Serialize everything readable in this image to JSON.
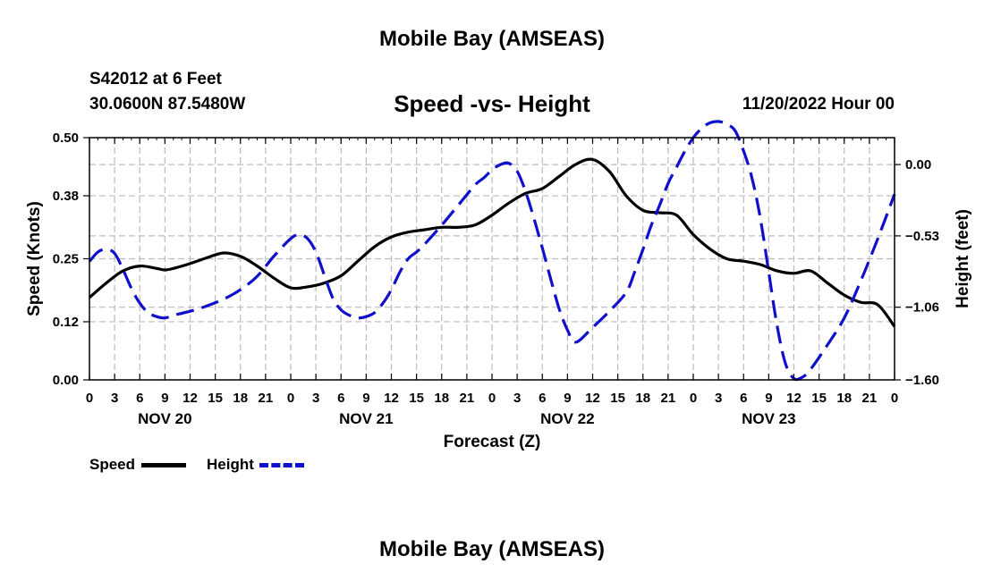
{
  "header": {
    "title": "Mobile Bay (AMSEAS)",
    "station": "S42012 at 6 Feet",
    "coords": "30.0600N  87.5480W",
    "subtitle": "Speed -vs- Height",
    "datetime": "11/20/2022 Hour 00"
  },
  "footer": {
    "title": "Mobile Bay (AMSEAS)"
  },
  "chart_data": {
    "type": "line",
    "title": "Speed -vs- Height",
    "xlabel": "Forecast (Z)",
    "ylabel": "Speed (Knots)",
    "y2label": "Height (feet)",
    "xlim": [
      0,
      96
    ],
    "ylim": [
      0,
      0.5
    ],
    "y2lim": [
      -1.6,
      0.2
    ],
    "x_ticks": [
      0,
      3,
      6,
      9,
      12,
      15,
      18,
      21,
      24,
      27,
      30,
      33,
      36,
      39,
      42,
      45,
      48,
      51,
      54,
      57,
      60,
      63,
      66,
      69,
      72,
      75,
      78,
      81,
      84,
      87,
      90,
      93,
      96
    ],
    "x_tick_labels": [
      "0",
      "3",
      "6",
      "9",
      "12",
      "15",
      "18",
      "21",
      "0",
      "3",
      "6",
      "9",
      "12",
      "15",
      "18",
      "21",
      "0",
      "3",
      "6",
      "9",
      "12",
      "15",
      "18",
      "21",
      "0",
      "3",
      "6",
      "9",
      "12",
      "15",
      "18",
      "21",
      "0"
    ],
    "day_labels": [
      {
        "x": 9,
        "label": "NOV 20"
      },
      {
        "x": 33,
        "label": "NOV 21"
      },
      {
        "x": 57,
        "label": "NOV 22"
      },
      {
        "x": 81,
        "label": "NOV 23"
      }
    ],
    "y_ticks": [
      0.0,
      0.12,
      0.25,
      0.38,
      0.5
    ],
    "y_tick_labels": [
      "0.00",
      "0.12",
      "0.25",
      "0.38",
      "0.50"
    ],
    "y2_ticks": [
      0.0,
      -0.53,
      -1.06,
      -1.6
    ],
    "y2_tick_labels": [
      "0.00",
      "−0.53",
      "−1.06",
      "−1.60"
    ],
    "grid": true,
    "series": [
      {
        "name": "Speed",
        "axis": "left",
        "color": "#000000",
        "dash": "solid",
        "x": [
          0,
          2,
          4,
          6,
          8,
          9,
          10,
          12,
          14,
          16,
          18,
          20,
          22,
          24,
          26,
          28,
          30,
          32,
          34,
          36,
          38,
          40,
          42,
          44,
          46,
          48,
          50,
          52,
          54,
          56,
          58,
          60,
          62,
          64,
          66,
          68,
          70,
          72,
          74,
          76,
          78,
          80,
          82,
          84,
          86,
          88,
          90,
          92,
          94,
          96
        ],
        "y": [
          0.17,
          0.2,
          0.225,
          0.235,
          0.23,
          0.227,
          0.23,
          0.24,
          0.252,
          0.262,
          0.255,
          0.235,
          0.21,
          0.19,
          0.192,
          0.2,
          0.215,
          0.245,
          0.275,
          0.295,
          0.305,
          0.31,
          0.315,
          0.315,
          0.32,
          0.34,
          0.365,
          0.385,
          0.395,
          0.42,
          0.445,
          0.455,
          0.43,
          0.38,
          0.35,
          0.345,
          0.34,
          0.3,
          0.27,
          0.25,
          0.245,
          0.238,
          0.225,
          0.22,
          0.225,
          0.2,
          0.175,
          0.16,
          0.155,
          0.11
        ]
      },
      {
        "name": "Height",
        "axis": "right",
        "color": "#1010cc",
        "dash": "dashed",
        "x": [
          0,
          1,
          2,
          3,
          4,
          5,
          6,
          7,
          8,
          9,
          10,
          12,
          14,
          16,
          18,
          20,
          22,
          24,
          25,
          26,
          27,
          28,
          29,
          30,
          31,
          32,
          33,
          34,
          35,
          36,
          37,
          38,
          39,
          40,
          42,
          44,
          46,
          47,
          48,
          49,
          50,
          51,
          52,
          53,
          54,
          55,
          56,
          57,
          58,
          60,
          62,
          64,
          65,
          66,
          67,
          68,
          69,
          70,
          71,
          72,
          73,
          74,
          75,
          76,
          77,
          78,
          79,
          80,
          81,
          82,
          83,
          84,
          85,
          86,
          88,
          90,
          92,
          94,
          96
        ],
        "y": [
          -0.72,
          -0.65,
          -0.63,
          -0.66,
          -0.78,
          -0.92,
          -1.03,
          -1.1,
          -1.13,
          -1.14,
          -1.12,
          -1.09,
          -1.05,
          -1.0,
          -0.93,
          -0.83,
          -0.68,
          -0.55,
          -0.52,
          -0.55,
          -0.65,
          -0.82,
          -0.99,
          -1.08,
          -1.12,
          -1.14,
          -1.13,
          -1.1,
          -1.03,
          -0.93,
          -0.8,
          -0.7,
          -0.65,
          -0.59,
          -0.45,
          -0.3,
          -0.15,
          -0.1,
          -0.04,
          0.0,
          0.01,
          -0.05,
          -0.2,
          -0.4,
          -0.62,
          -0.85,
          -1.07,
          -1.23,
          -1.32,
          -1.21,
          -1.09,
          -0.95,
          -0.8,
          -0.63,
          -0.45,
          -0.3,
          -0.14,
          -0.02,
          0.1,
          0.2,
          0.27,
          0.31,
          0.32,
          0.3,
          0.25,
          0.1,
          -0.1,
          -0.4,
          -0.8,
          -1.2,
          -1.48,
          -1.59,
          -1.58,
          -1.52,
          -1.34,
          -1.14,
          -0.86,
          -0.55,
          -0.22
        ]
      }
    ],
    "legend": [
      {
        "label": "Speed",
        "color": "#000000",
        "dash": "solid"
      },
      {
        "label": "Height",
        "color": "#1010cc",
        "dash": "dashed"
      }
    ]
  }
}
